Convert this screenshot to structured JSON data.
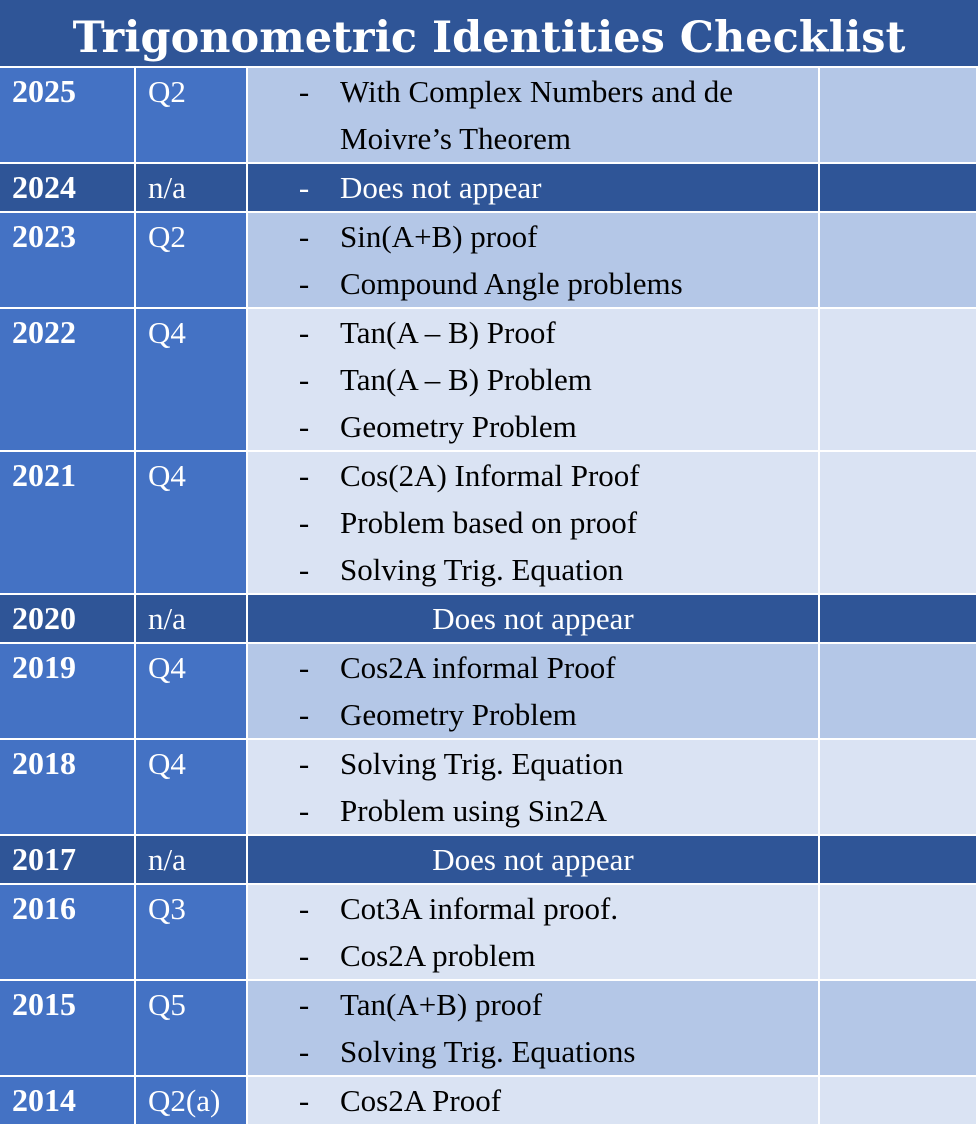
{
  "title": "Trigonometric Identities Checklist",
  "rows": [
    {
      "year": "2025",
      "question": "Q2",
      "items": [
        "With Complex Numbers and de",
        "Moivre’s Theorem"
      ]
    },
    {
      "year": "2024",
      "question": "n/a",
      "items": [
        "Does not appear"
      ]
    },
    {
      "year": "2023",
      "question": "Q2",
      "items": [
        "Sin(A+B) proof",
        "Compound Angle problems"
      ]
    },
    {
      "year": "2022",
      "question": "Q4",
      "items": [
        "Tan(A – B) Proof",
        "Tan(A – B) Problem",
        "Geometry Problem"
      ]
    },
    {
      "year": "2021",
      "question": "Q4",
      "items": [
        "Cos(2A) Informal Proof",
        "Problem based on proof",
        "Solving Trig. Equation"
      ]
    },
    {
      "year": "2020",
      "question": "n/a",
      "note": "Does not appear"
    },
    {
      "year": "2019",
      "question": "Q4",
      "items": [
        "Cos2A informal Proof",
        "Geometry Problem"
      ]
    },
    {
      "year": "2018",
      "question": "Q4",
      "items": [
        "Solving Trig. Equation",
        "Problem using Sin2A"
      ]
    },
    {
      "year": "2017",
      "question": "n/a",
      "note": "Does not appear"
    },
    {
      "year": "2016",
      "question": "Q3",
      "items": [
        "Cot3A informal proof.",
        "Cos2A problem"
      ]
    },
    {
      "year": "2015",
      "question": "Q5",
      "items": [
        "Tan(A+B) proof",
        "Solving Trig. Equations"
      ]
    },
    {
      "year": "2014",
      "question": "Q2(a)",
      "items": [
        "Cos2A Proof"
      ]
    }
  ],
  "bullet": "-",
  "colors": {
    "header": "#2f5597",
    "year_col": "#4472c4",
    "row_light": "#dae3f3",
    "row_mid": "#b4c7e7"
  }
}
